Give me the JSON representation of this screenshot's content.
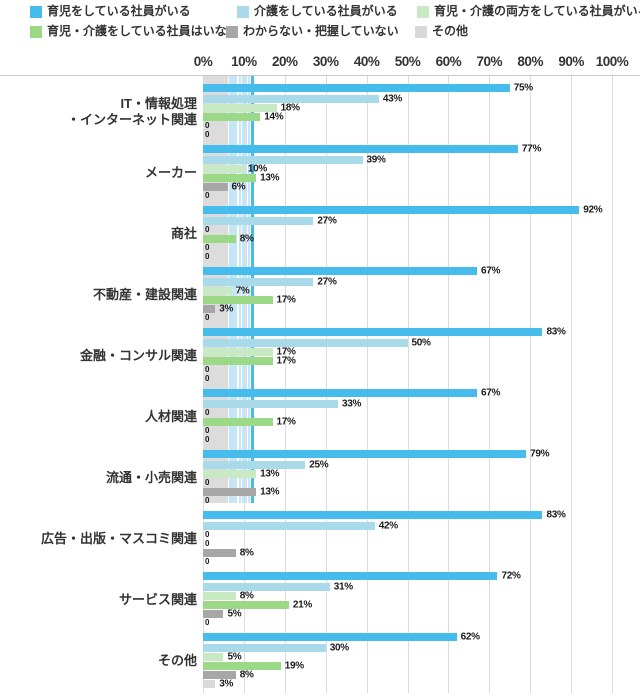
{
  "chart_data": {
    "type": "bar",
    "orientation": "horizontal",
    "grid": true,
    "legend_position": "top",
    "value_suffix": "%",
    "zero_label": "0",
    "x_axis": {
      "min": 0,
      "max": 100,
      "ticks": [
        "0%",
        "10%",
        "20%",
        "30%",
        "40%",
        "50%",
        "60%",
        "70%",
        "80%",
        "90%",
        "100%"
      ]
    },
    "categories": [
      "IT・情報処理・インターネット関連",
      "メーカー",
      "商社",
      "不動産・建設関連",
      "金融・コンサル関連",
      "人材関連",
      "流通・小売関連",
      "広告・出版・マスコミ関連",
      "サービス関連",
      "その他"
    ],
    "categories_display": [
      [
        "IT・情報処理",
        "・インターネット関連"
      ],
      [
        "メーカー"
      ],
      [
        "商社"
      ],
      [
        "不動産・建設関連"
      ],
      [
        "金融・コンサル関連"
      ],
      [
        "人材関連"
      ],
      [
        "流通・小売関連"
      ],
      [
        "広告・出版・マスコミ関連"
      ],
      [
        "サービス関連"
      ],
      [
        "その他"
      ]
    ],
    "series": [
      {
        "name": "育児をしている社員がいる",
        "color": "#45bceb",
        "values": [
          75,
          77,
          92,
          67,
          83,
          67,
          79,
          83,
          72,
          62
        ]
      },
      {
        "name": "介護をしている社員がいる",
        "color": "#a9daea",
        "values": [
          43,
          39,
          27,
          27,
          50,
          33,
          25,
          42,
          31,
          30
        ]
      },
      {
        "name": "育児・介護の両方をしている社員がいる",
        "color": "#c8e9c3",
        "values": [
          18,
          10,
          0,
          7,
          17,
          0,
          13,
          0,
          8,
          5
        ]
      },
      {
        "name": "育児・介護をしている社員はいない",
        "color": "#9bd987",
        "values": [
          14,
          13,
          8,
          17,
          17,
          17,
          0,
          0,
          21,
          19
        ]
      },
      {
        "name": "わからない・把握していない",
        "color": "#a7a7a7",
        "values": [
          0,
          6,
          0,
          3,
          0,
          0,
          13,
          8,
          5,
          8
        ]
      },
      {
        "name": "その他",
        "color": "#d9d9d9",
        "values": [
          0,
          0,
          0,
          0,
          0,
          0,
          0,
          0,
          0,
          3
        ]
      }
    ],
    "colors": {
      "grid": "#dcdcdc",
      "text": "#333333",
      "reference_band_gray": "#dcdcdc",
      "reference_band_blue": "#c6e6f7",
      "reference_line_blue": "#45bceb"
    }
  }
}
